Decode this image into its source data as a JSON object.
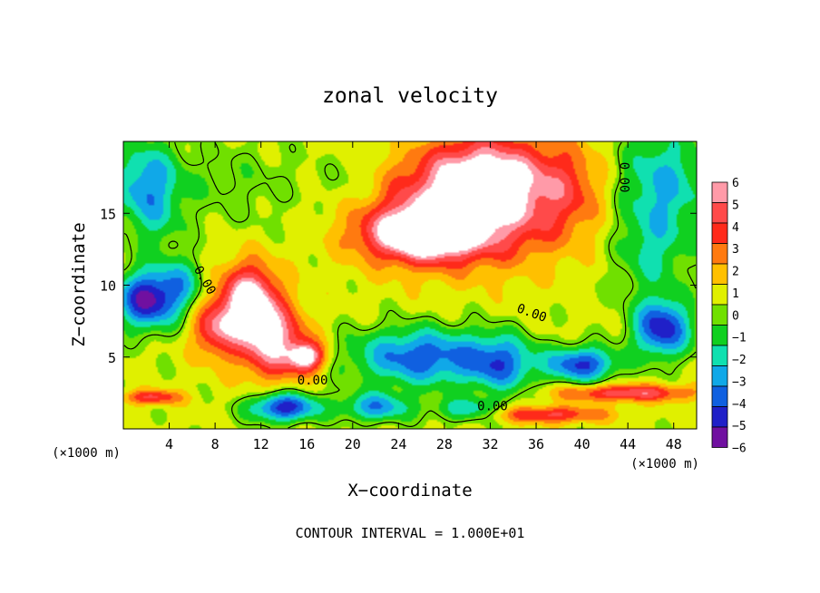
{
  "chart_data": {
    "type": "heatmap",
    "title": "zonal velocity",
    "xlabel": "X−coordinate",
    "ylabel": "Z−coordinate",
    "x_unit_left": "(×1000 m)",
    "x_unit_right": "(×1000 m)",
    "xlim": [
      0,
      50
    ],
    "ylim": [
      0,
      20
    ],
    "x_ticks": [
      "4",
      "8",
      "12",
      "16",
      "20",
      "24",
      "28",
      "32",
      "36",
      "40",
      "44",
      "48"
    ],
    "x_tick_values": [
      4,
      8,
      12,
      16,
      20,
      24,
      28,
      32,
      36,
      40,
      44,
      48
    ],
    "y_ticks": [
      "5",
      "10",
      "15"
    ],
    "y_tick_values": [
      5,
      10,
      15
    ],
    "colorbar": {
      "labels": [
        "6",
        "5",
        "4",
        "3",
        "2",
        "1",
        "0",
        "−1",
        "−2",
        "−3",
        "−4",
        "−5",
        "−6"
      ],
      "values": [
        6,
        5,
        4,
        3,
        2,
        1,
        0,
        -1,
        -2,
        -3,
        -4,
        -5,
        -6
      ],
      "colors": [
        "#ff9aa8",
        "#ff4a4a",
        "#ff2a1a",
        "#ff7a10",
        "#ffc000",
        "#e0f000",
        "#70e000",
        "#10d020",
        "#10e0b0",
        "#10a8e8",
        "#1060e0",
        "#2020c8",
        "#7010a0"
      ]
    },
    "contour_labels": [
      "0.00",
      "0.00",
      "0.00",
      "0.00",
      "0.00"
    ],
    "footer": "CONTOUR INTERVAL = 1.000E+01",
    "features": [
      {
        "x": 26,
        "y": 13.5,
        "v": 6,
        "sx": 5,
        "sy": 1.8
      },
      {
        "x": 28,
        "y": 15,
        "v": 4.5,
        "sx": 7,
        "sy": 3.5
      },
      {
        "x": 31,
        "y": 18,
        "v": 4,
        "sx": 5,
        "sy": 2.5
      },
      {
        "x": 35,
        "y": 16,
        "v": 3,
        "sx": 6,
        "sy": 4
      },
      {
        "x": 39,
        "y": 17,
        "v": 1.5,
        "sx": 3,
        "sy": 3
      },
      {
        "x": 11,
        "y": 9,
        "v": 6.5,
        "sx": 2.5,
        "sy": 2.5
      },
      {
        "x": 13,
        "y": 6,
        "v": 5.5,
        "sx": 3,
        "sy": 2.5
      },
      {
        "x": 16,
        "y": 5,
        "v": 6,
        "sx": 1.5,
        "sy": 1
      },
      {
        "x": 8,
        "y": 7,
        "v": 4,
        "sx": 2,
        "sy": 2
      },
      {
        "x": 2.5,
        "y": 2.2,
        "v": 4,
        "sx": 2.5,
        "sy": 0.5
      },
      {
        "x": 44,
        "y": 2.5,
        "v": 4.5,
        "sx": 6,
        "sy": 0.6
      },
      {
        "x": 37,
        "y": 1,
        "v": 4,
        "sx": 5,
        "sy": 0.6
      },
      {
        "x": 2,
        "y": 9,
        "v": -6.5,
        "sx": 2.5,
        "sy": 2
      },
      {
        "x": 47,
        "y": 7,
        "v": -6,
        "sx": 2.5,
        "sy": 2
      },
      {
        "x": 14,
        "y": 1.5,
        "v": -6,
        "sx": 3,
        "sy": 1
      },
      {
        "x": 26,
        "y": 5,
        "v": -5,
        "sx": 6,
        "sy": 2
      },
      {
        "x": 33,
        "y": 4.5,
        "v": -4,
        "sx": 3,
        "sy": 2
      },
      {
        "x": 40,
        "y": 4.5,
        "v": -5.5,
        "sx": 3,
        "sy": 1.2
      },
      {
        "x": 22,
        "y": 1.5,
        "v": -4,
        "sx": 3,
        "sy": 1
      },
      {
        "x": 30,
        "y": 1.3,
        "v": -3,
        "sx": 3,
        "sy": 0.8
      },
      {
        "x": 5,
        "y": 10,
        "v": -3,
        "sx": 2,
        "sy": 2
      },
      {
        "x": 2,
        "y": 17,
        "v": -4,
        "sx": 3,
        "sy": 3
      },
      {
        "x": 47,
        "y": 17,
        "v": -3.5,
        "sx": 4,
        "sy": 4
      },
      {
        "x": 46,
        "y": 12,
        "v": -2,
        "sx": 3,
        "sy": 3
      },
      {
        "x": 10,
        "y": 17,
        "v": -1,
        "sx": 6,
        "sy": 3
      },
      {
        "x": 20,
        "y": 17,
        "v": -1,
        "sx": 3,
        "sy": 2
      },
      {
        "x": 3,
        "y": 14,
        "v": -1,
        "sx": 2,
        "sy": 2
      }
    ]
  }
}
